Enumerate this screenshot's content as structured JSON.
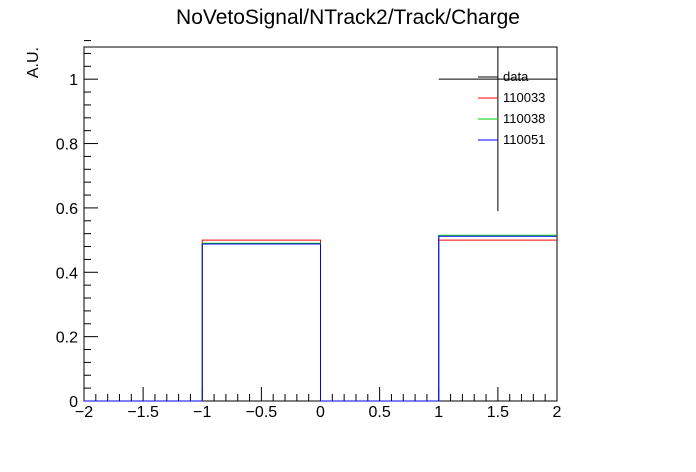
{
  "chart_data": {
    "type": "histogram",
    "title": "NoVetoSignal/NTrack2/Track/Charge",
    "xlabel": "",
    "ylabel": "A.U.",
    "xlim": [
      -2,
      2
    ],
    "ylim": [
      0,
      1.1
    ],
    "x_ticks": [
      -2,
      -1.5,
      -1,
      -0.5,
      0,
      0.5,
      1,
      1.5,
      2
    ],
    "x_tick_labels": [
      "−2",
      "−1.5",
      "−1",
      "−0.5",
      "0",
      "0.5",
      "1",
      "1.5",
      "2"
    ],
    "y_ticks": [
      0,
      0.2,
      0.4,
      0.6,
      0.8,
      1
    ],
    "y_tick_labels": [
      "0",
      "0.2",
      "0.4",
      "0.6",
      "0.8",
      "1"
    ],
    "bin_edges": [
      -2,
      -1,
      0,
      1,
      2
    ],
    "series": [
      {
        "name": "data",
        "color": "#000000",
        "style": "points",
        "points": [
          {
            "x": 1.5,
            "y": 1.0,
            "xerr": 0.5,
            "yerr_low": 0.41,
            "yerr_high": 0.41
          }
        ]
      },
      {
        "name": "110033",
        "color": "#ff0000",
        "style": "step",
        "values": [
          0,
          0.5,
          0,
          0.5
        ]
      },
      {
        "name": "110038",
        "color": "#00cc00",
        "style": "step",
        "values": [
          0,
          0.49,
          0,
          0.515
        ]
      },
      {
        "name": "110051",
        "color": "#0000ff",
        "style": "step",
        "values": [
          0,
          0.488,
          0,
          0.512
        ]
      }
    ],
    "legend_position": "top-right",
    "grid": false
  }
}
